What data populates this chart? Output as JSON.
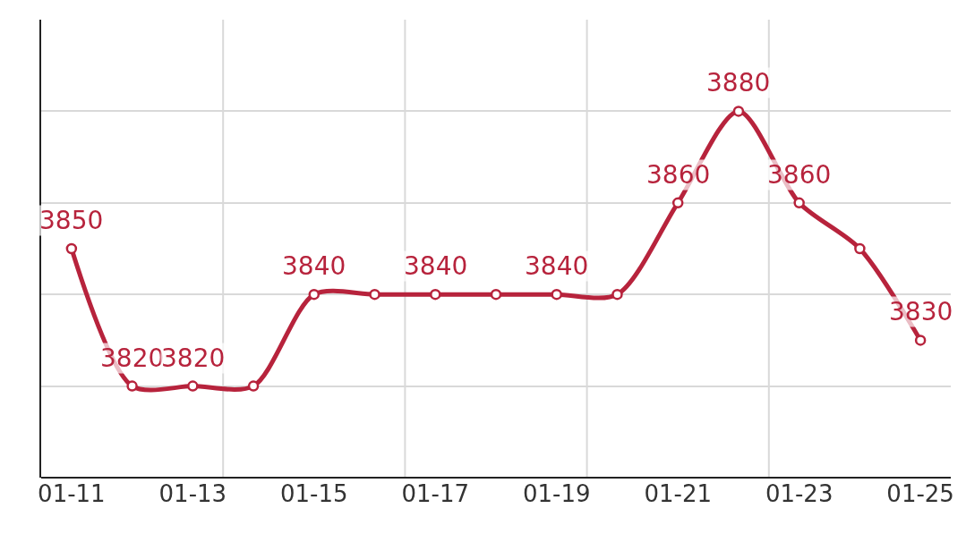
{
  "chart_data": {
    "type": "line",
    "categories": [
      "01-11",
      null,
      "01-13",
      null,
      "01-15",
      null,
      "01-17",
      null,
      "01-19",
      null,
      "01-21",
      null,
      "01-23",
      null,
      "01-25"
    ],
    "series": [
      {
        "color": "#b7233c",
        "values": [
          3850,
          3820,
          3820,
          3820,
          3840,
          3840,
          3840,
          3840,
          3840,
          3840,
          3860,
          3880,
          3860,
          3850,
          3830
        ],
        "value_labels": [
          "3850",
          "3820",
          "3820",
          null,
          "3840",
          null,
          "3840",
          null,
          "3840",
          null,
          "3860",
          "3880",
          "3860",
          null,
          "3830"
        ]
      }
    ],
    "ylim": [
      3800,
      3900
    ],
    "yticks": [
      {
        "value": 3800,
        "label": null
      },
      {
        "value": 3820,
        "label": null
      },
      {
        "value": 3840,
        "label": null
      },
      {
        "value": 3860,
        "label": null
      },
      {
        "value": 3880,
        "label": null
      }
    ],
    "tick_labels": "x",
    "grid": true,
    "marker": "circle",
    "line_style": "solid",
    "legend": false
  }
}
